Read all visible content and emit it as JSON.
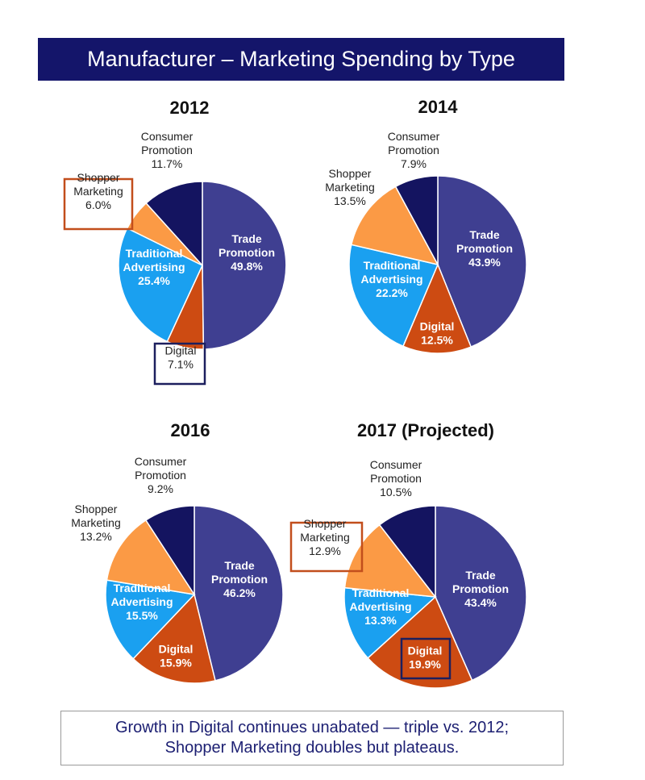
{
  "title": "Manufacturer – Marketing Spending by Type",
  "colors": {
    "header_bg": "#14156a",
    "trade_promotion": "#3f3f91",
    "digital": "#cd4b12",
    "traditional_advertising": "#1aa0f0",
    "shopper_marketing": "#fb9a45",
    "consumer_promotion": "#141460",
    "highlight_orange": "#c24e1c",
    "highlight_navy": "#1c1f5e"
  },
  "chart_data": [
    {
      "type": "pie",
      "title": "2012",
      "slices": [
        {
          "label": [
            "Trade",
            "Promotion"
          ],
          "value_label": "49.8%",
          "value": 49.8,
          "color": "#3f3f91"
        },
        {
          "label": [
            "Digital"
          ],
          "value_label": "7.1%",
          "value": 7.1,
          "color": "#cd4b12",
          "highlight": "navy"
        },
        {
          "label": [
            "Traditional",
            "Advertising"
          ],
          "value_label": "25.4%",
          "value": 25.4,
          "color": "#1aa0f0"
        },
        {
          "label": [
            "Shopper",
            "Marketing"
          ],
          "value_label": "6.0%",
          "value": 6.0,
          "color": "#fb9a45",
          "highlight": "orange"
        },
        {
          "label": [
            "Consumer",
            "Promotion"
          ],
          "value_label": "11.7%",
          "value": 11.7,
          "color": "#141460"
        }
      ]
    },
    {
      "type": "pie",
      "title": "2014",
      "slices": [
        {
          "label": [
            "Trade",
            "Promotion"
          ],
          "value_label": "43.9%",
          "value": 43.9,
          "color": "#3f3f91"
        },
        {
          "label": [
            "Digital"
          ],
          "value_label": "12.5%",
          "value": 12.5,
          "color": "#cd4b12"
        },
        {
          "label": [
            "Traditional",
            "Advertising"
          ],
          "value_label": "22.2%",
          "value": 22.2,
          "color": "#1aa0f0"
        },
        {
          "label": [
            "Shopper",
            "Marketing"
          ],
          "value_label": "13.5%",
          "value": 13.5,
          "color": "#fb9a45"
        },
        {
          "label": [
            "Consumer",
            "Promotion"
          ],
          "value_label": "7.9%",
          "value": 7.9,
          "color": "#141460"
        }
      ]
    },
    {
      "type": "pie",
      "title": "2016",
      "slices": [
        {
          "label": [
            "Trade",
            "Promotion"
          ],
          "value_label": "46.2%",
          "value": 46.2,
          "color": "#3f3f91"
        },
        {
          "label": [
            "Digital"
          ],
          "value_label": "15.9%",
          "value": 15.9,
          "color": "#cd4b12"
        },
        {
          "label": [
            "Traditional",
            "Advertising"
          ],
          "value_label": "15.5%",
          "value": 15.5,
          "color": "#1aa0f0"
        },
        {
          "label": [
            "Shopper",
            "Marketing"
          ],
          "value_label": "13.2%",
          "value": 13.2,
          "color": "#fb9a45"
        },
        {
          "label": [
            "Consumer",
            "Promotion"
          ],
          "value_label": "9.2%",
          "value": 9.2,
          "color": "#141460"
        }
      ]
    },
    {
      "type": "pie",
      "title": "2017 (Projected)",
      "slices": [
        {
          "label": [
            "Trade",
            "Promotion"
          ],
          "value_label": "43.4%",
          "value": 43.4,
          "color": "#3f3f91"
        },
        {
          "label": [
            "Digital"
          ],
          "value_label": "19.9%",
          "value": 19.9,
          "color": "#cd4b12",
          "highlight": "navy"
        },
        {
          "label": [
            "Traditional",
            "Advertising"
          ],
          "value_label": "13.3%",
          "value": 13.3,
          "color": "#1aa0f0"
        },
        {
          "label": [
            "Shopper",
            "Marketing"
          ],
          "value_label": "12.9%",
          "value": 12.9,
          "color": "#fb9a45",
          "highlight": "orange"
        },
        {
          "label": [
            "Consumer",
            "Promotion"
          ],
          "value_label": "10.5%",
          "value": 10.5,
          "color": "#141460"
        }
      ]
    }
  ],
  "footer": {
    "line1": "Growth in Digital continues unabated — triple vs. 2012;",
    "line2": "Shopper Marketing doubles but plateaus."
  }
}
